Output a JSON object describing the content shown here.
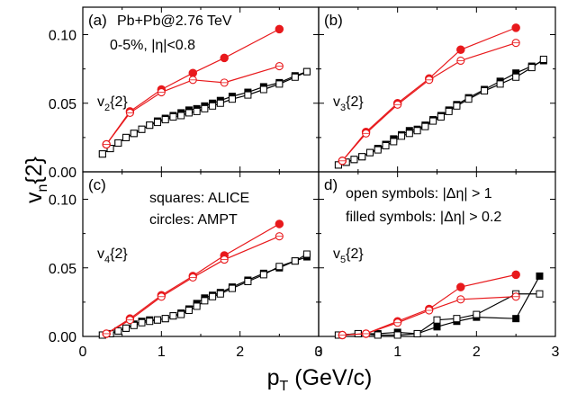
{
  "figure": {
    "ylabel_main": "v",
    "ylabel_sub": "n",
    "ylabel_rest": "{2}",
    "xlabel_main": "p",
    "xlabel_sub": "T",
    "xlabel_rest": " (GeV/c)",
    "colors": {
      "alice": "#000000",
      "ampt": "#e8191c"
    }
  },
  "chart_data": [
    {
      "type": "scatter",
      "panel": "(a)",
      "label_main": "v",
      "label_sub": "2",
      "label_rest": "{2}",
      "annotations": [
        "Pb+Pb@2.76 TeV",
        "0-5%, |η|<0.8"
      ],
      "xlim": [
        0,
        3
      ],
      "ylim": [
        0,
        0.12
      ],
      "yticks": [
        "0.00",
        "0.05",
        "0.10"
      ],
      "xticks": [],
      "series": [
        {
          "kind": "alice_filled",
          "x": [
            0.25,
            0.35,
            0.45,
            0.55,
            0.65,
            0.75,
            0.85,
            0.95,
            1.05,
            1.15,
            1.25,
            1.35,
            1.45,
            1.55,
            1.65,
            1.75,
            1.9,
            2.1,
            2.3,
            2.5,
            2.7,
            2.85
          ],
          "y": [
            0.013,
            0.017,
            0.021,
            0.025,
            0.028,
            0.031,
            0.034,
            0.037,
            0.039,
            0.041,
            0.043,
            0.045,
            0.046,
            0.048,
            0.05,
            0.052,
            0.055,
            0.058,
            0.062,
            0.065,
            0.07,
            0.073
          ]
        },
        {
          "kind": "alice_open",
          "x": [
            0.25,
            0.35,
            0.45,
            0.55,
            0.65,
            0.75,
            0.85,
            0.95,
            1.05,
            1.15,
            1.25,
            1.35,
            1.45,
            1.55,
            1.65,
            1.75,
            1.9,
            2.1,
            2.3,
            2.5,
            2.7,
            2.85
          ],
          "y": [
            0.013,
            0.017,
            0.021,
            0.025,
            0.028,
            0.031,
            0.034,
            0.036,
            0.038,
            0.04,
            0.041,
            0.043,
            0.044,
            0.046,
            0.048,
            0.05,
            0.053,
            0.056,
            0.06,
            0.064,
            0.069,
            0.073
          ]
        },
        {
          "kind": "ampt_filled",
          "x": [
            0.3,
            0.6,
            1.0,
            1.4,
            1.8,
            2.5
          ],
          "y": [
            0.02,
            0.044,
            0.06,
            0.072,
            0.083,
            0.104
          ]
        },
        {
          "kind": "ampt_open",
          "x": [
            0.3,
            0.6,
            1.0,
            1.4,
            1.8,
            2.5
          ],
          "y": [
            0.02,
            0.043,
            0.058,
            0.067,
            0.065,
            0.077
          ]
        }
      ]
    },
    {
      "type": "scatter",
      "panel": "(b)",
      "label_main": "v",
      "label_sub": "3",
      "label_rest": "{2}",
      "annotations": [],
      "xlim": [
        0,
        3
      ],
      "ylim": [
        0,
        0.12
      ],
      "yticks": [],
      "xticks": [],
      "series": [
        {
          "kind": "alice_filled",
          "x": [
            0.25,
            0.35,
            0.45,
            0.55,
            0.65,
            0.75,
            0.85,
            0.95,
            1.05,
            1.15,
            1.25,
            1.35,
            1.45,
            1.55,
            1.65,
            1.75,
            1.9,
            2.1,
            2.3,
            2.5,
            2.7,
            2.85
          ],
          "y": [
            0.005,
            0.007,
            0.009,
            0.011,
            0.014,
            0.017,
            0.02,
            0.024,
            0.027,
            0.03,
            0.031,
            0.034,
            0.038,
            0.041,
            0.045,
            0.049,
            0.054,
            0.06,
            0.066,
            0.072,
            0.077,
            0.081
          ]
        },
        {
          "kind": "alice_open",
          "x": [
            0.25,
            0.35,
            0.45,
            0.55,
            0.65,
            0.75,
            0.85,
            0.95,
            1.05,
            1.15,
            1.25,
            1.35,
            1.45,
            1.55,
            1.65,
            1.75,
            1.9,
            2.1,
            2.3,
            2.5,
            2.7,
            2.85
          ],
          "y": [
            0.005,
            0.007,
            0.009,
            0.011,
            0.014,
            0.016,
            0.019,
            0.022,
            0.026,
            0.028,
            0.03,
            0.033,
            0.037,
            0.04,
            0.044,
            0.048,
            0.053,
            0.059,
            0.064,
            0.069,
            0.076,
            0.082
          ]
        },
        {
          "kind": "ampt_filled",
          "x": [
            0.3,
            0.6,
            1.0,
            1.4,
            1.8,
            2.5
          ],
          "y": [
            0.008,
            0.029,
            0.05,
            0.068,
            0.089,
            0.105
          ]
        },
        {
          "kind": "ampt_open",
          "x": [
            0.3,
            0.6,
            1.0,
            1.4,
            1.8,
            2.5
          ],
          "y": [
            0.008,
            0.028,
            0.049,
            0.067,
            0.081,
            0.094
          ]
        }
      ]
    },
    {
      "type": "scatter",
      "panel": "(c)",
      "label_main": "v",
      "label_sub": "4",
      "label_rest": "{2}",
      "annotations": [
        "squares: ALICE",
        "circles: AMPT"
      ],
      "xlim": [
        0,
        3
      ],
      "ylim": [
        0,
        0.12
      ],
      "yticks": [
        "0.00",
        "0.05",
        "0.10"
      ],
      "xticks": [],
      "series": [
        {
          "kind": "alice_filled",
          "x": [
            0.25,
            0.35,
            0.45,
            0.55,
            0.65,
            0.75,
            0.85,
            0.95,
            1.05,
            1.15,
            1.25,
            1.35,
            1.45,
            1.55,
            1.65,
            1.75,
            1.9,
            2.1,
            2.3,
            2.5,
            2.7,
            2.85
          ],
          "y": [
            0.001,
            0.002,
            0.004,
            0.006,
            0.009,
            0.011,
            0.012,
            0.012,
            0.013,
            0.015,
            0.017,
            0.02,
            0.024,
            0.028,
            0.03,
            0.032,
            0.036,
            0.041,
            0.046,
            0.05,
            0.055,
            0.058
          ]
        },
        {
          "kind": "alice_open",
          "x": [
            0.25,
            0.35,
            0.45,
            0.55,
            0.65,
            0.75,
            0.85,
            0.95,
            1.05,
            1.15,
            1.25,
            1.35,
            1.45,
            1.55,
            1.65,
            1.75,
            1.9,
            2.1,
            2.3,
            2.5,
            2.7,
            2.85
          ],
          "y": [
            0.001,
            0.002,
            0.004,
            0.006,
            0.008,
            0.01,
            0.011,
            0.012,
            0.013,
            0.015,
            0.016,
            0.019,
            0.022,
            0.026,
            0.029,
            0.031,
            0.035,
            0.04,
            0.045,
            0.051,
            0.055,
            0.06
          ]
        },
        {
          "kind": "ampt_filled",
          "x": [
            0.3,
            0.6,
            1.0,
            1.4,
            1.8,
            2.5
          ],
          "y": [
            0.002,
            0.013,
            0.03,
            0.044,
            0.059,
            0.082
          ]
        },
        {
          "kind": "ampt_open",
          "x": [
            0.3,
            0.6,
            1.0,
            1.4,
            1.8,
            2.5
          ],
          "y": [
            0.002,
            0.012,
            0.029,
            0.043,
            0.056,
            0.073
          ]
        }
      ]
    },
    {
      "type": "scatter",
      "panel": "d)",
      "label_main": "v",
      "label_sub": "5",
      "label_rest": "{2}",
      "annotations": [
        "open symbols: |Δη| > 1",
        "filled symbols: |Δη| > 0.2"
      ],
      "xlim": [
        0,
        3
      ],
      "ylim": [
        0,
        0.12
      ],
      "yticks": [],
      "xticks": [
        "0",
        "1",
        "2",
        "3"
      ],
      "series": [
        {
          "kind": "alice_filled",
          "x": [
            0.25,
            0.5,
            0.75,
            1.0,
            1.25,
            1.5,
            1.75,
            2.0,
            2.5,
            2.8
          ],
          "y": [
            0.001,
            0.002,
            0.002,
            0.003,
            0.002,
            0.007,
            0.011,
            0.014,
            0.013,
            0.044
          ]
        },
        {
          "kind": "alice_open",
          "x": [
            0.25,
            0.5,
            0.75,
            1.0,
            1.25,
            1.5,
            1.75,
            2.0,
            2.5,
            2.8
          ],
          "y": [
            0.001,
            0.002,
            0.001,
            0.001,
            0.002,
            0.012,
            0.013,
            0.016,
            0.031,
            0.031
          ]
        },
        {
          "kind": "ampt_filled",
          "x": [
            0.3,
            0.6,
            1.0,
            1.4,
            1.8,
            2.5
          ],
          "y": [
            0.001,
            0.002,
            0.011,
            0.02,
            0.036,
            0.045
          ]
        },
        {
          "kind": "ampt_open",
          "x": [
            0.3,
            0.6,
            1.0,
            1.4,
            1.8,
            2.5
          ],
          "y": [
            0.001,
            0.002,
            0.01,
            0.019,
            0.027,
            0.029
          ]
        }
      ]
    }
  ]
}
